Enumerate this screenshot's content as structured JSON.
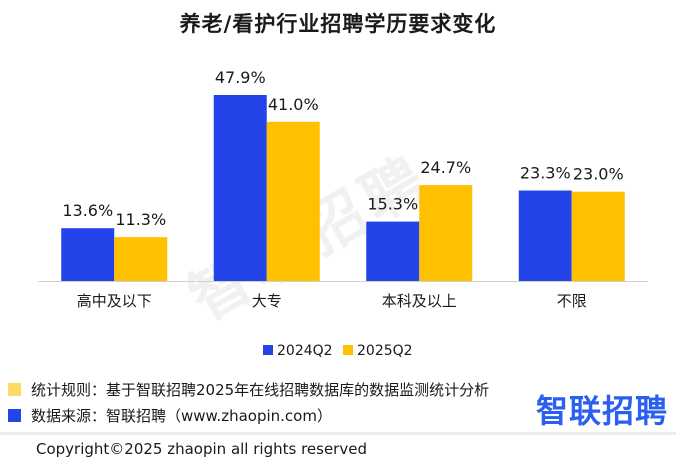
{
  "chart_data": {
    "type": "bar",
    "title": "养老/看护行业招聘学历要求变化",
    "categories": [
      "高中及以下",
      "大专",
      "本科及以上",
      "不限"
    ],
    "series": [
      {
        "name": "2024Q2",
        "color": "#2244e8",
        "values": [
          13.6,
          47.9,
          15.3,
          23.3
        ],
        "labels": [
          "13.6%",
          "47.9%",
          "15.3%",
          "23.3%"
        ]
      },
      {
        "name": "2025Q2",
        "color": "#ffc000",
        "values": [
          11.3,
          41.0,
          24.7,
          23.0
        ],
        "labels": [
          "11.3%",
          "41.0%",
          "24.7%",
          "23.0%"
        ]
      }
    ],
    "ylim": [
      0,
      50
    ],
    "grid": false,
    "legend_position": "bottom"
  },
  "watermark": "智联招聘",
  "notes": [
    {
      "text": "统计规则：基于智联招聘2025年在线招聘数据库的数据监测统计分析",
      "color": "#ffd966"
    },
    {
      "text": "数据来源：智联招聘（www.zhaopin.com）",
      "color": "#2244e8"
    }
  ],
  "logo_text": "智联招聘",
  "copyright": "Copyright©2025 zhaopin all rights reserved"
}
